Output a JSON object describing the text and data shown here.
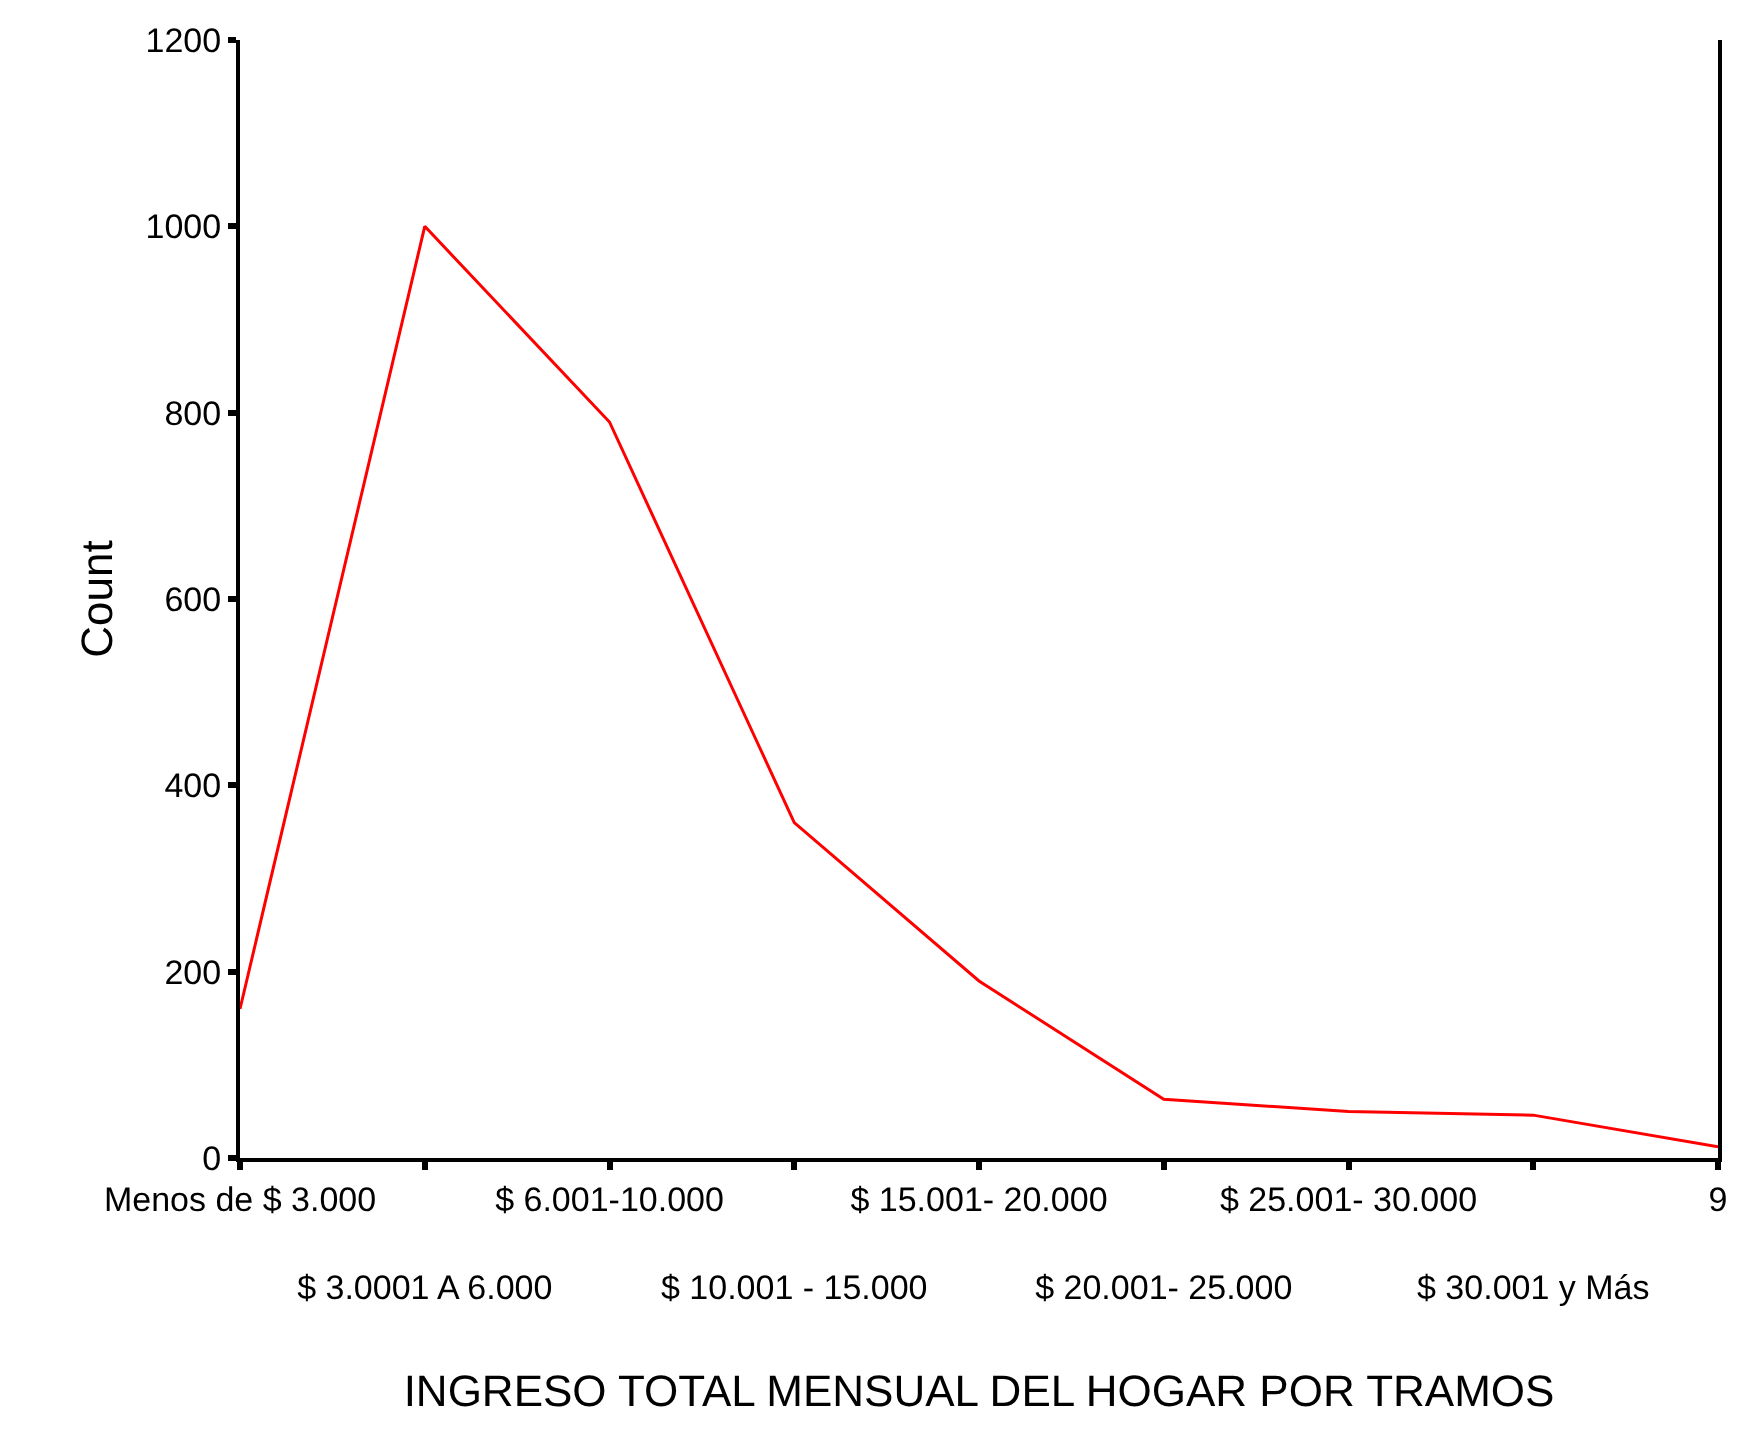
{
  "chart_data": {
    "type": "line",
    "xlabel": "INGRESO TOTAL MENSUAL DEL HOGAR POR TRAMOS",
    "ylabel": "Count",
    "categories": [
      "Menos de $ 3.000",
      "$ 3.0001 A 6.000",
      "$ 6.001-10.000",
      "$ 10.001 - 15.000",
      "$ 15.001- 20.000",
      "$ 20.001- 25.000",
      "$ 25.001- 30.000",
      "$ 30.001 y Más",
      "9"
    ],
    "series": [
      {
        "color": "#ff0000",
        "values": [
          160,
          1000,
          790,
          360,
          190,
          63,
          50,
          46,
          12
        ]
      }
    ],
    "ylim": [
      0,
      1200
    ],
    "yticks": [
      0,
      200,
      400,
      600,
      800,
      1000,
      1200
    ],
    "marker": "none",
    "line_style": "solid"
  }
}
